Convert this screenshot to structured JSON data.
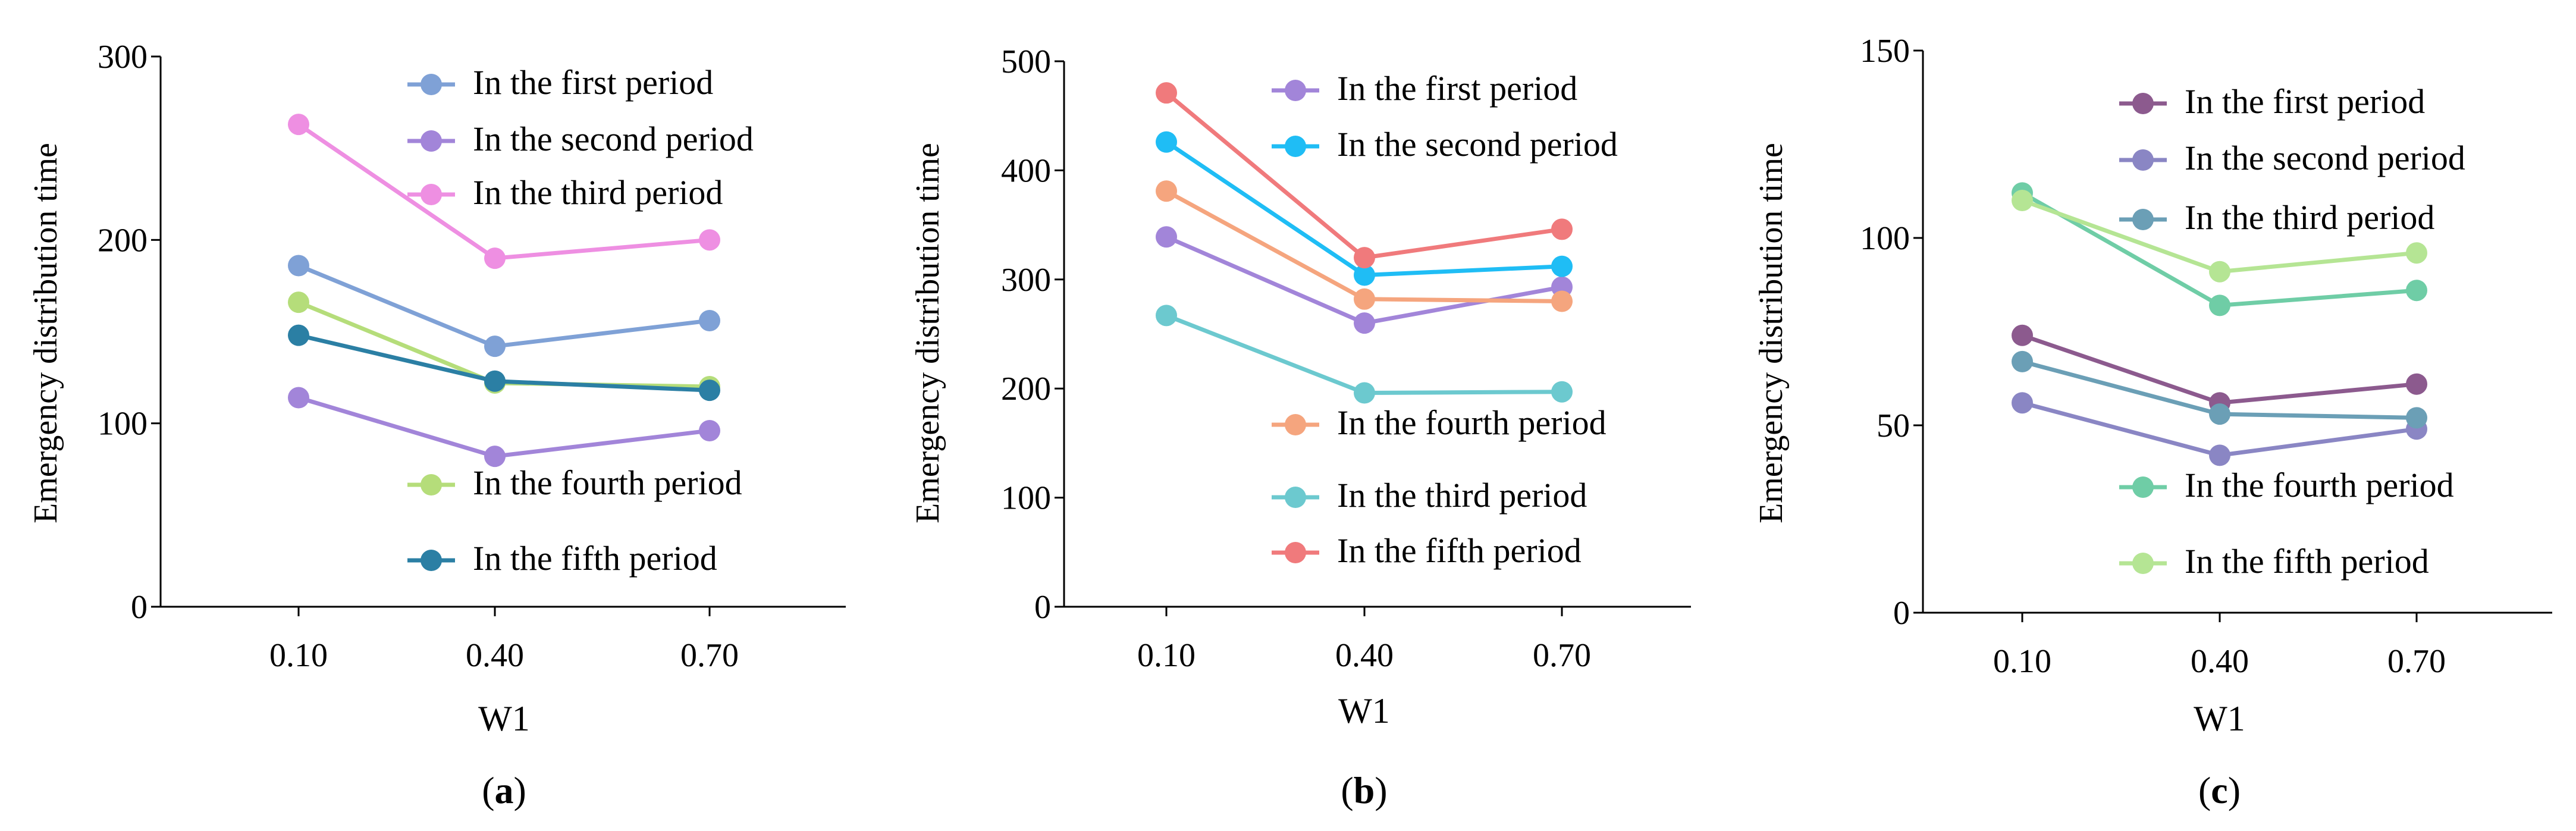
{
  "chart_data": [
    {
      "type": "line",
      "panel_label": "(a)",
      "panel_letter": "a",
      "xlabel": "W1",
      "ylabel": "Emergency distribution time",
      "categories": [
        "0.10",
        "0.40",
        "0.70"
      ],
      "ylim": [
        0,
        300
      ],
      "yticks": [
        "0",
        "100",
        "200",
        "300"
      ],
      "legend_placement": "split: upper-right and lower-right",
      "series": [
        {
          "name": "In the first period",
          "color": "#7fa1d6",
          "values": [
            186,
            142,
            156
          ]
        },
        {
          "name": "In the second period",
          "color": "#a285d9",
          "values": [
            114,
            82,
            96
          ]
        },
        {
          "name": "In the third period",
          "color": "#ee8fe2",
          "values": [
            263,
            190,
            200
          ]
        },
        {
          "name": "In the fourth period",
          "color": "#b5dd7a",
          "values": [
            166,
            122,
            120
          ]
        },
        {
          "name": "In the fifth period",
          "color": "#2b7fa4",
          "values": [
            148,
            123,
            118
          ]
        }
      ]
    },
    {
      "type": "line",
      "panel_label": "(b)",
      "panel_letter": "b",
      "xlabel": "W1",
      "ylabel": "Emergency distribution time",
      "categories": [
        "0.10",
        "0.40",
        "0.70"
      ],
      "ylim": [
        0,
        500
      ],
      "yticks": [
        "0",
        "100",
        "200",
        "300",
        "400",
        "500"
      ],
      "legend_placement": "split: upper-right and lower-right",
      "series": [
        {
          "name": "In the first period",
          "color": "#a285d9",
          "values": [
            339,
            260,
            293
          ]
        },
        {
          "name": "In the second period",
          "color": "#1fbdf5",
          "values": [
            426,
            304,
            312
          ]
        },
        {
          "name": "In the fourth period",
          "color": "#f5a57e",
          "values": [
            381,
            282,
            280
          ]
        },
        {
          "name": "In the third period",
          "color": "#6cc9cf",
          "values": [
            267,
            196,
            197
          ]
        },
        {
          "name": "In the fifth period",
          "color": "#f07a7c",
          "values": [
            471,
            320,
            346
          ]
        }
      ]
    },
    {
      "type": "line",
      "panel_label": "(c)",
      "panel_letter": "c",
      "xlabel": "W1",
      "ylabel": "Emergency distribution time",
      "categories": [
        "0.10",
        "0.40",
        "0.70"
      ],
      "ylim": [
        0,
        150
      ],
      "yticks": [
        "0",
        "50",
        "100",
        "150"
      ],
      "legend_placement": "split: upper-right and lower-right",
      "series": [
        {
          "name": "In the first period",
          "color": "#8c5a8e",
          "values": [
            74,
            56,
            61
          ]
        },
        {
          "name": "In the second period",
          "color": "#8a86c4",
          "values": [
            56,
            42,
            49
          ]
        },
        {
          "name": "In the third period",
          "color": "#6b9fb6",
          "values": [
            67,
            53,
            52
          ]
        },
        {
          "name": "In the fourth period",
          "color": "#6fcda6",
          "values": [
            112,
            82,
            86
          ]
        },
        {
          "name": "In the fifth period",
          "color": "#b5e594",
          "values": [
            110,
            91,
            96
          ]
        }
      ]
    }
  ]
}
